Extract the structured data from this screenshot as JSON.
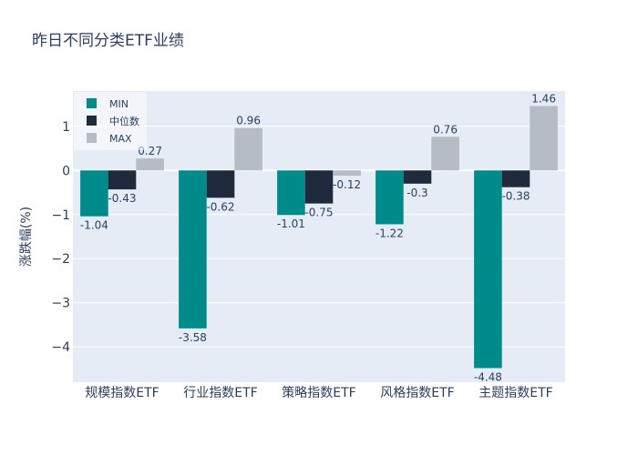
{
  "chart_data": {
    "type": "bar",
    "title": "昨日不同分类ETF业绩",
    "xlabel": "",
    "ylabel": "涨跌幅(%)",
    "ylim": [
      -4.8,
      1.8
    ],
    "yticks": [
      -4,
      -3,
      -2,
      -1,
      0,
      1
    ],
    "categories": [
      "规模指数ETF",
      "行业指数ETF",
      "策略指数ETF",
      "风格指数ETF",
      "主题指数ETF"
    ],
    "series": [
      {
        "name": "MIN",
        "color": "#008b8b",
        "values": [
          -1.04,
          -3.58,
          -1.01,
          -1.22,
          -4.48
        ],
        "labels": [
          "-1.04",
          "-3.58",
          "-1.01",
          "-1.22",
          "-4.48"
        ]
      },
      {
        "name": "中位数",
        "color": "#1f2a3c",
        "values": [
          -0.43,
          -0.62,
          -0.75,
          -0.3,
          -0.38
        ],
        "labels": [
          "-0.43",
          "-0.62",
          "-0.75",
          "-0.3",
          "-0.38"
        ]
      },
      {
        "name": "MAX",
        "color": "#b5bcc5",
        "values": [
          0.27,
          0.96,
          -0.12,
          0.76,
          1.46
        ],
        "labels": [
          "0.27",
          "0.96",
          "-0.12",
          "0.76",
          "1.46"
        ]
      }
    ],
    "grid": true,
    "legend_position": "top-left",
    "plot_background": "#e5ecf6"
  }
}
